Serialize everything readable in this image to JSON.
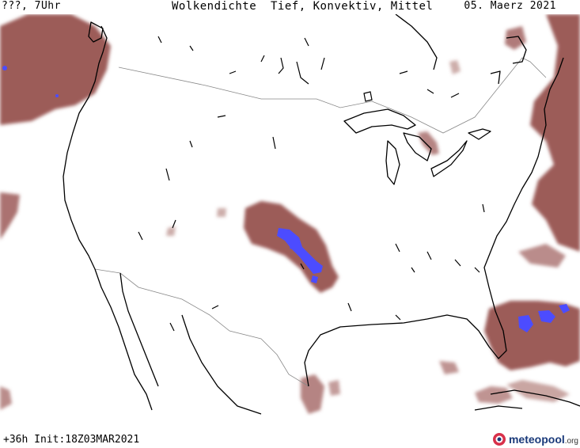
{
  "header": {
    "left": "???, 7Uhr",
    "center": "Wolkendichte  Tief, Konvektiv, Mittel",
    "right": "05. Maerz 2021"
  },
  "footer": {
    "run_info": "+36h Init:18Z03MAR2021",
    "logo_name": "meteopool",
    "logo_tld": ".org"
  },
  "colors": {
    "cloud_fill": "#9c5b58",
    "cloud_fill_light": "#b98683",
    "convective": "#4c4cff",
    "coastline": "#000000",
    "borders": "#888888"
  }
}
